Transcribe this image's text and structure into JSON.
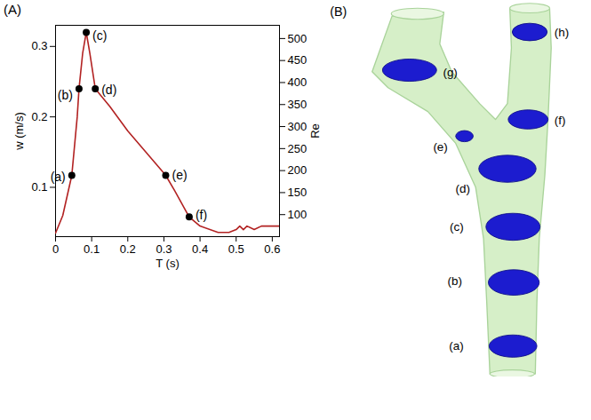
{
  "chart_data": {
    "type": "line",
    "panel_label": "(A)",
    "x_label": "T (s)",
    "y_label": "w (m/s)",
    "y2_label": "Re",
    "x": [
      0,
      0.02,
      0.045,
      0.06,
      0.065,
      0.075,
      0.085,
      0.095,
      0.11,
      0.15,
      0.2,
      0.25,
      0.3,
      0.305,
      0.33,
      0.37,
      0.4,
      0.45,
      0.48,
      0.5,
      0.51,
      0.52,
      0.53,
      0.55,
      0.57,
      0.62
    ],
    "series": [
      {
        "color": "#b22222",
        "values": [
          0.035,
          0.06,
          0.117,
          0.2,
          0.24,
          0.29,
          0.32,
          0.29,
          0.24,
          0.215,
          0.18,
          0.15,
          0.12,
          0.117,
          0.095,
          0.058,
          0.045,
          0.036,
          0.036,
          0.04,
          0.045,
          0.04,
          0.045,
          0.04,
          0.045,
          0.045
        ]
      }
    ],
    "annotations": [
      {
        "text": "(a)",
        "x": 0.045,
        "y": 0.117
      },
      {
        "text": "(b)",
        "x": 0.065,
        "y": 0.24
      },
      {
        "text": "(c)",
        "x": 0.085,
        "y": 0.32
      },
      {
        "text": "(d)",
        "x": 0.11,
        "y": 0.24
      },
      {
        "text": "(e)",
        "x": 0.305,
        "y": 0.117
      },
      {
        "text": "(f)",
        "x": 0.37,
        "y": 0.058
      }
    ],
    "xlim": [
      0,
      0.62
    ],
    "xticks": [
      0,
      0.1,
      0.2,
      0.3,
      0.4,
      0.5,
      0.6
    ],
    "ylim": [
      0.03,
      0.33
    ],
    "yticks": [
      0.1,
      0.2,
      0.3
    ],
    "y2lim": [
      50,
      530
    ],
    "y2ticks": [
      100,
      150,
      200,
      250,
      300,
      350,
      400,
      450,
      500
    ],
    "grid": false
  },
  "diagram": {
    "panel_label": "(B)",
    "sections": [
      "(a)",
      "(b)",
      "(c)",
      "(d)",
      "(e)",
      "(f)",
      "(g)",
      "(h)"
    ]
  }
}
